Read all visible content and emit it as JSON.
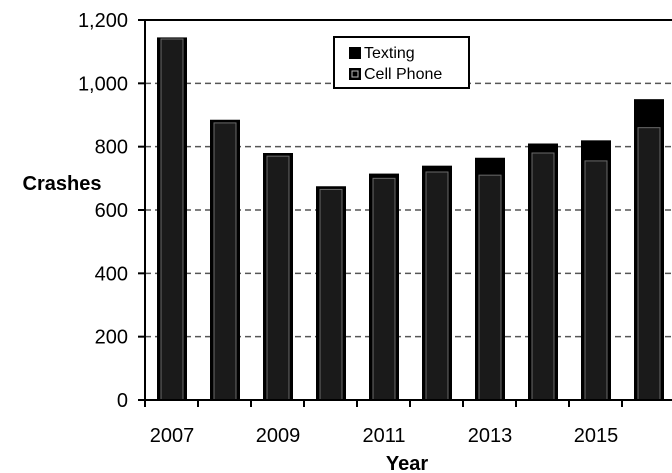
{
  "chart_data": {
    "type": "bar",
    "categories": [
      "2007",
      "2008",
      "2009",
      "2010",
      "2011",
      "2012",
      "2013",
      "2014",
      "2015",
      "2016"
    ],
    "series": [
      {
        "name": "Texting",
        "values": [
          1145,
          885,
          780,
          675,
          715,
          740,
          765,
          810,
          820,
          950
        ]
      },
      {
        "name": "Cell Phone",
        "values": [
          1140,
          875,
          770,
          665,
          700,
          720,
          710,
          780,
          755,
          860
        ]
      }
    ],
    "xlabel": "Year",
    "ylabel": "Crashes",
    "ylim": [
      0,
      1200
    ],
    "yticks": [
      0,
      200,
      400,
      600,
      800,
      1000,
      1200
    ],
    "ytick_labels": [
      "0",
      "200",
      "400",
      "600",
      "800",
      "1,000",
      "1,200"
    ],
    "xtick_labels": [
      "2007",
      "2009",
      "2011",
      "2013",
      "2015"
    ],
    "grid": true,
    "legend_position": "top-center",
    "colors": {
      "texting": "#000000",
      "cell_phone": "#1a1a1a",
      "grid": "#555555",
      "background": "#ffffff"
    }
  }
}
